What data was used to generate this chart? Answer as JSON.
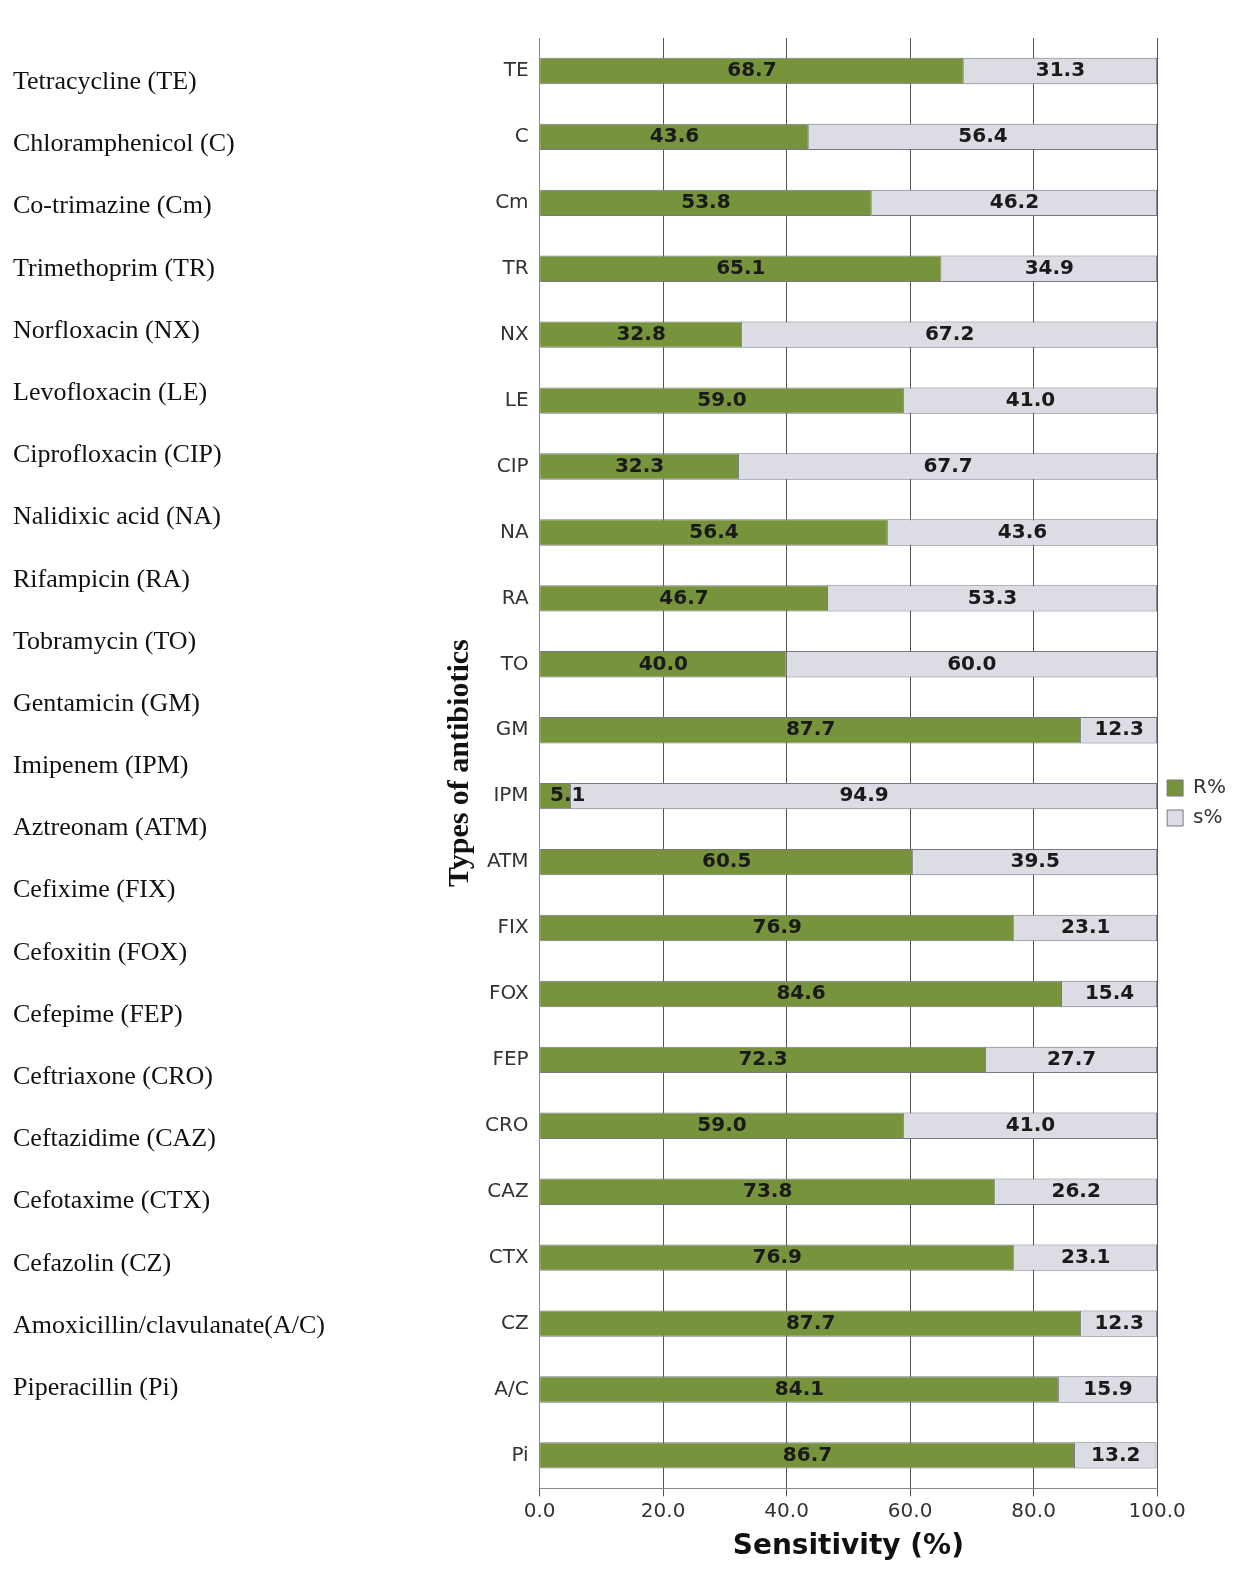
{
  "chart_data": {
    "type": "bar",
    "orientation": "horizontal",
    "stacked": true,
    "xlabel": "Sensitivity (%)",
    "ylabel": "Types of antibiotics",
    "categories": [
      "TE",
      "C",
      "Cm",
      "TR",
      "NX",
      "LE",
      "CIP",
      "NA",
      "RA",
      "TO",
      "GM",
      "IPM",
      "ATM",
      "FIX",
      "FOX",
      "FEP",
      "CRO",
      "CAZ",
      "CTX",
      "CZ",
      "A/C",
      "Pi"
    ],
    "series": [
      {
        "name": "R%",
        "color": "#77933c",
        "values": [
          68.7,
          43.6,
          53.8,
          65.1,
          32.8,
          59.0,
          32.3,
          56.4,
          46.7,
          40.0,
          87.7,
          5.1,
          60.5,
          76.9,
          84.6,
          72.3,
          59.0,
          73.8,
          76.9,
          87.7,
          84.1,
          86.7
        ],
        "value_labels": [
          "68.7",
          "43.6",
          "53.8",
          "65.1",
          "32.8",
          "59.0",
          "32.3",
          "56.4",
          "46.7",
          "40.0",
          "87.7",
          "5.1",
          "60.5",
          "76.9",
          "84.6",
          "72.3",
          "59.0",
          "73.8",
          "76.9",
          "87.7",
          "84.1",
          "86.7"
        ]
      },
      {
        "name": "s%",
        "color": "#dcdce4",
        "values": [
          31.3,
          56.4,
          46.2,
          34.9,
          67.2,
          41.0,
          67.7,
          43.6,
          53.3,
          60.0,
          12.3,
          94.9,
          39.5,
          23.1,
          15.4,
          27.7,
          41.0,
          26.2,
          23.1,
          12.3,
          15.9,
          13.2
        ],
        "value_labels": [
          "31.3",
          "56.4",
          "46.2",
          "34.9",
          "67.2",
          "41.0",
          "67.7",
          "43.6",
          "53.3",
          "60.0",
          "12.3",
          "94.9",
          "39.5",
          "23.1",
          "15.4",
          "27.7",
          "41.0",
          "26.2",
          "23.1",
          "12.3",
          "15.9",
          "13.2"
        ]
      }
    ],
    "xlim": [
      0,
      100
    ],
    "xticks": [
      {
        "value": 0,
        "label": "0.0"
      },
      {
        "value": 20,
        "label": "20.0"
      },
      {
        "value": 40,
        "label": "40.0"
      },
      {
        "value": 60,
        "label": "60.0"
      },
      {
        "value": 80,
        "label": "80.0"
      },
      {
        "value": 100,
        "label": "100.0"
      }
    ],
    "grid": "x",
    "legend": "right",
    "annotations": [
      "Tetracycline (TE)",
      "Chloramphenicol (C)",
      "Co-trimazine (Cm)",
      "Trimethoprim (TR)",
      "Norfloxacin (NX)",
      "Levofloxacin (LE)",
      "Ciprofloxacin (CIP)",
      "Nalidixic acid (NA)",
      "Rifampicin (RA)",
      "Tobramycin (TO)",
      "Gentamicin (GM)",
      "Imipenem (IPM)",
      "Aztreonam (ATM)",
      "Cefixime (FIX)",
      "Cefoxitin (FOX)",
      "Cefepime (FEP)",
      "Ceftriaxone (CRO)",
      "Ceftazidime (CAZ)",
      "Cefotaxime (CTX)",
      "Cefazolin (CZ)",
      "Amoxicillin/clavulanate(A/C)",
      "Piperacillin (Pi)"
    ]
  }
}
